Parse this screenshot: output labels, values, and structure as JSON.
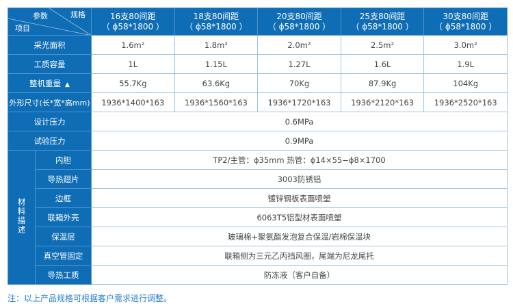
{
  "corner": {
    "param": "参数",
    "spec": "规格",
    "item": "项目"
  },
  "columns": [
    {
      "line1": "16支80间距",
      "line2": "（ ϕ58*1800 ）"
    },
    {
      "line1": "18支80间距",
      "line2": "（ ϕ58*1800 ）"
    },
    {
      "line1": "20支80间距",
      "line2": "（ ϕ58*1800 ）"
    },
    {
      "line1": "25支80间距",
      "line2": "（ ϕ58*1800 ）"
    },
    {
      "line1": "30支80间距",
      "line2": "（ ϕ58*1800 ）"
    }
  ],
  "rows": [
    {
      "label": "采光面积",
      "values": [
        "1.6m²",
        "1.8m²",
        "2.0m²",
        "2.5m²",
        "3.0m²"
      ]
    },
    {
      "label": "工质容量",
      "values": [
        "1L",
        "1.15L",
        "1.27L",
        "1.6L",
        "1.9L"
      ]
    },
    {
      "label": "整机重量",
      "icon": "triangle-up-icon",
      "values": [
        "55.7Kg",
        "63.6Kg",
        "70Kg",
        "87.9Kg",
        "104Kg"
      ]
    },
    {
      "label": "外形尺寸(长*宽*高mm)",
      "values": [
        "1936*1400*163",
        "1936*1560*163",
        "1936*1720*163",
        "1936*2120*163",
        "1936*2520*163"
      ]
    }
  ],
  "merged_rows": [
    {
      "label": "设计压力",
      "value": "0.6MPa"
    },
    {
      "label": "试验压力",
      "value": "0.9MPa"
    }
  ],
  "materials": {
    "group_label": "材料描述",
    "rows": [
      {
        "label": "内胆",
        "value": "TP2/主管：ϕ35mm    热管：ϕ14×55−ϕ8×1700"
      },
      {
        "label": "导热翅片",
        "value": "3003防锈铝"
      },
      {
        "label": "边框",
        "value": "镀锌钢板表面喷塑"
      },
      {
        "label": "联箱外壳",
        "value": "6063T5铝型材表面喷塑"
      },
      {
        "label": "保温层",
        "value": "玻璃棉+聚氨酯发泡复合保温/岩棉保温块"
      },
      {
        "label": "真空管固定",
        "value": "联箱侧为三元乙丙挡风圈，尾端为尼龙尾托"
      },
      {
        "label": "导热工质",
        "value": "防冻液（客户自备）"
      }
    ]
  },
  "note": "注：以上产品规格可根据客户需求进行调整。",
  "colors": {
    "header": "#0f6db6",
    "border": "#9cc4e4",
    "note": "#2a7fc9"
  }
}
